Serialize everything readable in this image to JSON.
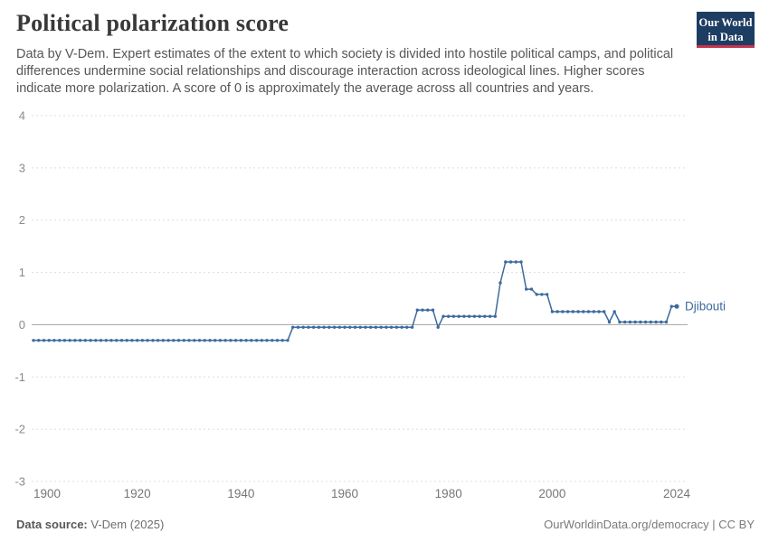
{
  "header": {
    "title": "Political polarization score",
    "subtitle": "Data by V-Dem. Expert estimates of the extent to which society is divided into hostile political camps, and political differences undermine social relationships and discourage interaction across ideological lines. Higher scores indicate more polarization. A score of 0 is approximately the average across all countries and years.",
    "logo": {
      "line1": "Our World",
      "line2": "in Data",
      "bg_color": "#1d3d63",
      "accent_color": "#c7324d"
    }
  },
  "chart_data": {
    "type": "line",
    "title": "Political polarization score",
    "xlabel": "",
    "ylabel": "",
    "xlim": [
      1900,
      2024
    ],
    "ylim": [
      -3,
      4
    ],
    "yticks": [
      4,
      3,
      2,
      1,
      0,
      -1,
      -2,
      -3
    ],
    "xticks": [
      1900,
      1920,
      1940,
      1960,
      1980,
      2000,
      2024
    ],
    "grid": "horizontal-dashed",
    "zero_line": true,
    "legend_position": "end-of-line-label",
    "series": [
      {
        "name": "Djibouti",
        "color": "#3d6a9e",
        "runs": [
          {
            "from": 1900,
            "to": 1949,
            "value": -0.3
          },
          {
            "from": 1950,
            "to": 1973,
            "value": -0.05
          },
          {
            "from": 1974,
            "to": 1977,
            "value": 0.28
          },
          {
            "from": 1978,
            "to": 1978,
            "value": -0.05
          },
          {
            "from": 1979,
            "to": 1989,
            "value": 0.16
          },
          {
            "from": 1990,
            "to": 1990,
            "value": 0.8
          },
          {
            "from": 1991,
            "to": 1994,
            "value": 1.2
          },
          {
            "from": 1995,
            "to": 1996,
            "value": 0.68
          },
          {
            "from": 1997,
            "to": 1999,
            "value": 0.58
          },
          {
            "from": 2000,
            "to": 2010,
            "value": 0.25
          },
          {
            "from": 2011,
            "to": 2011,
            "value": 0.05
          },
          {
            "from": 2012,
            "to": 2012,
            "value": 0.25
          },
          {
            "from": 2013,
            "to": 2022,
            "value": 0.05
          },
          {
            "from": 2023,
            "to": 2024,
            "value": 0.35
          }
        ]
      }
    ]
  },
  "footer": {
    "source_label": "Data source:",
    "source_value": " V-Dem (2025)",
    "credit": "OurWorldinData.org/democracy | CC BY"
  }
}
